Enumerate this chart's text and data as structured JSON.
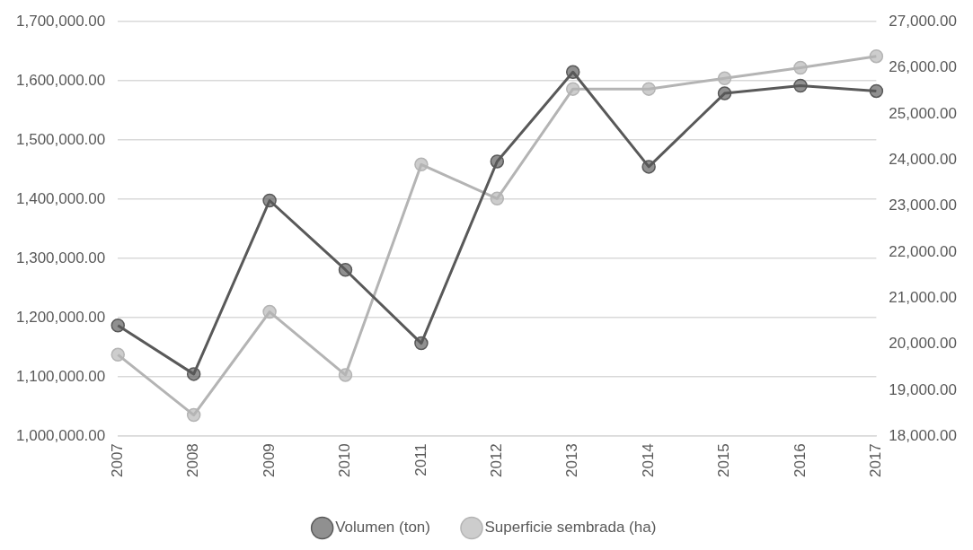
{
  "chart_data": {
    "type": "line",
    "categories": [
      "2007",
      "2008",
      "2009",
      "2010",
      "2011",
      "2012",
      "2013",
      "2014",
      "2015",
      "2016",
      "2017"
    ],
    "series": [
      {
        "name": "Volumen (ton)",
        "color": "#595959",
        "values": [
          1187000,
          1105000,
          1398000,
          1281000,
          1157000,
          1464000,
          1615000,
          1455000,
          1579000,
          1592000,
          1583000
        ]
      },
      {
        "name": "Superficie sembrada (ha)",
        "color": "#b4b4b4",
        "axis": "y2",
        "values": [
          19770,
          18460,
          20700,
          19330,
          23900,
          23160,
          25540,
          25540,
          25770,
          26000,
          26250
        ]
      }
    ],
    "ylim": [
      1000000,
      1700000
    ],
    "yticks": [
      {
        "value": 1000000,
        "label": "1,000,000.00"
      },
      {
        "value": 1100000,
        "label": "1,100,000.00"
      },
      {
        "value": 1200000,
        "label": "1,200,000.00"
      },
      {
        "value": 1300000,
        "label": "1,300,000.00"
      },
      {
        "value": 1400000,
        "label": "1,400,000.00"
      },
      {
        "value": 1500000,
        "label": "1,500,000.00"
      },
      {
        "value": 1600000,
        "label": "1,600,000.00"
      },
      {
        "value": 1700000,
        "label": "1,700,000.00"
      }
    ],
    "y2lim": [
      18000,
      27000
    ],
    "y2ticks": [
      {
        "value": 18000,
        "label": "18,000.00"
      },
      {
        "value": 19000,
        "label": "19,000.00"
      },
      {
        "value": 20000,
        "label": "20,000.00"
      },
      {
        "value": 21000,
        "label": "21,000.00"
      },
      {
        "value": 22000,
        "label": "22,000.00"
      },
      {
        "value": 23000,
        "label": "23,000.00"
      },
      {
        "value": 24000,
        "label": "24,000.00"
      },
      {
        "value": 25000,
        "label": "25,000.00"
      },
      {
        "value": 26000,
        "label": "26,000.00"
      },
      {
        "value": 27000,
        "label": "27,000.00"
      }
    ],
    "grid": "y",
    "legend": "bottom",
    "marker": "circle",
    "line_style": "solid"
  }
}
